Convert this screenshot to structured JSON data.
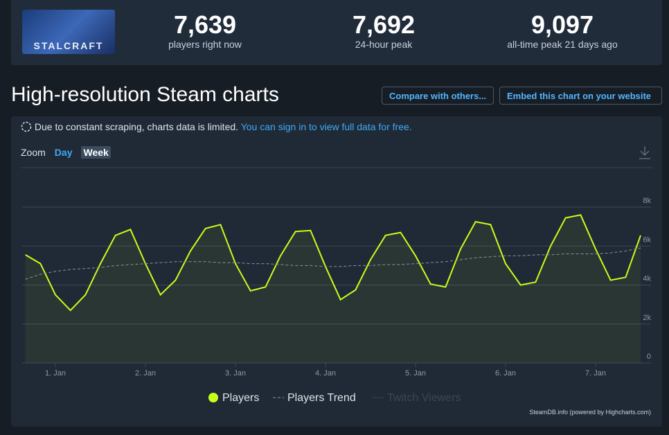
{
  "logo_text": "STALCRAFT",
  "stats": [
    {
      "value": "7,639",
      "label": "players right now"
    },
    {
      "value": "7,692",
      "label": "24-hour peak"
    },
    {
      "value": "9,097",
      "label": "all-time peak 21 days ago"
    }
  ],
  "heading": "High-resolution Steam charts",
  "buttons": [
    "Compare with others...",
    "Embed this chart on your website"
  ],
  "notice": {
    "text": "Due to constant scraping, charts data is limited.",
    "link": "You can sign in to view full data for free."
  },
  "zoom": {
    "label": "Zoom",
    "options": [
      "Day",
      "Week"
    ]
  },
  "credits": "SteamDB.info (powered by Highcharts.com)",
  "chart_data": {
    "type": "line",
    "categories": [
      null,
      null,
      "1. Jan",
      null,
      null,
      null,
      null,
      null,
      "2. Jan",
      null,
      null,
      null,
      null,
      null,
      "3. Jan",
      null,
      null,
      null,
      null,
      null,
      "4. Jan",
      null,
      null,
      null,
      null,
      null,
      "5. Jan",
      null,
      null,
      null,
      null,
      null,
      "6. Jan",
      null,
      null,
      null,
      null,
      null,
      "7. Jan",
      null,
      null,
      null
    ],
    "ylim": [
      0,
      8000
    ],
    "yticks": [
      {
        "value": 0,
        "label": "0"
      },
      {
        "value": 2000,
        "label": "2k"
      },
      {
        "value": 4000,
        "label": "4k"
      },
      {
        "value": 6000,
        "label": "6k"
      },
      {
        "value": 8000,
        "label": "8k"
      }
    ],
    "grid": true,
    "series": [
      {
        "name": "Players",
        "color": "#c6ff1a",
        "values": [
          5550,
          5100,
          3500,
          2700,
          3500,
          5100,
          6550,
          6850,
          5100,
          3500,
          4250,
          5750,
          6900,
          7100,
          5100,
          3700,
          3900,
          5500,
          6750,
          6800,
          4950,
          3250,
          3750,
          5300,
          6550,
          6700,
          5500,
          4050,
          3900,
          5850,
          7250,
          7100,
          5100,
          4000,
          4150,
          6000,
          7450,
          7600,
          5850,
          4250,
          4400,
          6550
        ]
      },
      {
        "name": "Players Trend",
        "color": "#8b939c",
        "values": [
          4300,
          4550,
          4700,
          4800,
          4850,
          4900,
          5000,
          5050,
          5100,
          5150,
          5200,
          5200,
          5200,
          5150,
          5150,
          5100,
          5100,
          5050,
          5000,
          5000,
          4950,
          4950,
          5000,
          5000,
          5050,
          5050,
          5100,
          5150,
          5200,
          5300,
          5400,
          5450,
          5500,
          5500,
          5550,
          5550,
          5600,
          5600,
          5600,
          5650,
          5750,
          5900
        ]
      },
      {
        "name": "Twitch Viewers",
        "color": "#3a4654",
        "values": [
          null,
          null,
          null,
          null,
          null,
          null,
          null,
          null,
          null,
          null,
          null,
          null,
          null,
          null,
          null,
          null,
          null,
          null,
          null,
          null,
          null,
          null,
          null,
          null,
          null,
          null,
          null,
          null,
          null,
          null,
          null,
          null,
          null,
          null,
          null,
          null,
          null,
          null,
          null,
          null,
          null,
          null
        ]
      }
    ]
  }
}
